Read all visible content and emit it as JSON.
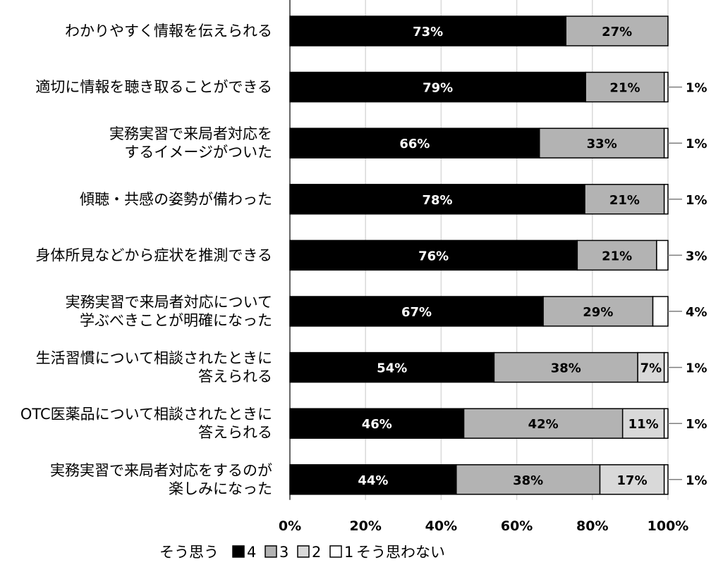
{
  "chart_data": {
    "type": "bar",
    "orientation": "horizontal",
    "stacked": true,
    "categories": [
      [
        "わかりやすく情報を伝えられる"
      ],
      [
        "適切に情報を聴き取ることができる"
      ],
      [
        "実務実習で来局者対応を",
        "するイメージがついた"
      ],
      [
        "傾聴・共感の姿勢が備わった"
      ],
      [
        "身体所見などから症状を推測できる"
      ],
      [
        "実務実習で来局者対応について",
        "学ぶべきことが明確になった"
      ],
      [
        "生活習慣について相談されたときに",
        "答えられる"
      ],
      [
        "OTC医薬品について相談されたときに",
        "答えられる"
      ],
      [
        "実務実習で来局者対応をするのが",
        "楽しみになった"
      ]
    ],
    "series": [
      {
        "name": "4",
        "color": "#000000",
        "label_color": "#ffffff",
        "values": [
          73,
          79,
          66,
          78,
          76,
          67,
          54,
          46,
          44
        ]
      },
      {
        "name": "3",
        "color": "#b3b3b3",
        "label_color": "#000000",
        "values": [
          27,
          21,
          33,
          21,
          21,
          29,
          38,
          42,
          38
        ]
      },
      {
        "name": "2",
        "color": "#d9d9d9",
        "label_color": "#000000",
        "values": [
          0,
          0,
          0,
          0,
          0,
          0,
          7,
          11,
          17
        ]
      },
      {
        "name": "1",
        "color": "#ffffff",
        "label_color": "#000000",
        "values": [
          0,
          1,
          1,
          1,
          3,
          4,
          1,
          1,
          1
        ]
      }
    ],
    "bar_labels": [
      [
        "73%",
        "27%",
        "",
        ""
      ],
      [
        "79%",
        "21%",
        "",
        "1%"
      ],
      [
        "66%",
        "33%",
        "",
        "1%"
      ],
      [
        "78%",
        "21%",
        "",
        "1%"
      ],
      [
        "76%",
        "21%",
        "",
        "3%"
      ],
      [
        "67%",
        "29%",
        "",
        "4%"
      ],
      [
        "54%",
        "38%",
        "7%",
        "1%"
      ],
      [
        "46%",
        "42%",
        "11%",
        "1%"
      ],
      [
        "44%",
        "38%",
        "17%",
        "1%"
      ]
    ],
    "xlim": [
      0,
      100
    ],
    "xticks": [
      "0%",
      "20%",
      "40%",
      "60%",
      "80%",
      "100%"
    ],
    "grid": true,
    "legend": {
      "position": "bottom",
      "prefix": "そう思う",
      "suffix": "そう思わない",
      "items": [
        "4",
        "3",
        "2",
        "1"
      ]
    }
  }
}
